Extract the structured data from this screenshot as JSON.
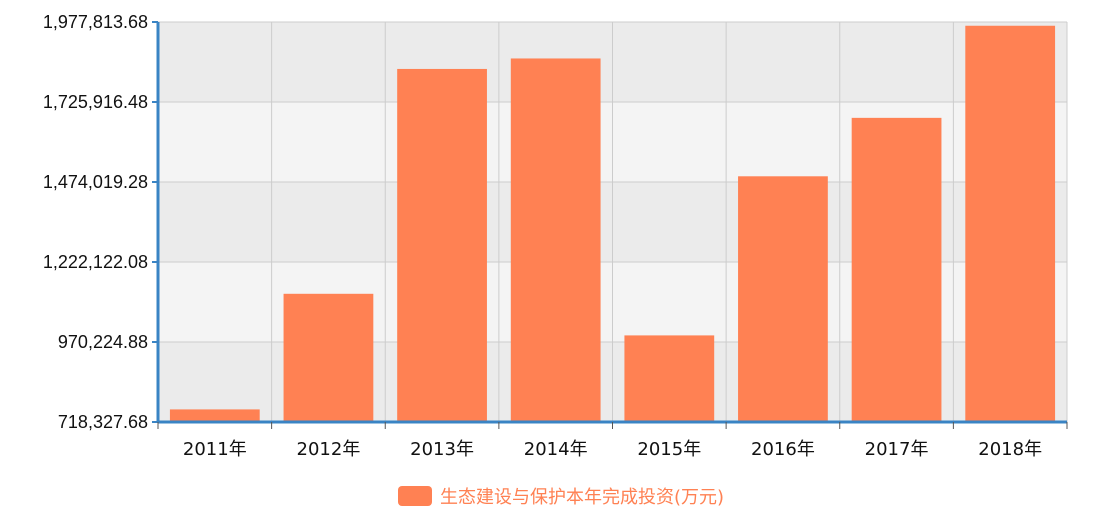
{
  "chart_data": {
    "type": "bar",
    "categories": [
      "2011年",
      "2012年",
      "2013年",
      "2014年",
      "2015年",
      "2016年",
      "2017年",
      "2018年"
    ],
    "series": [
      {
        "name": "生态建设与保护本年完成投资(万元)",
        "values": [
          758000,
          1122000,
          1830000,
          1863000,
          991000,
          1492000,
          1676000,
          1966000
        ],
        "color": "#ff8153"
      }
    ],
    "ylim": [
      718327.68,
      1977813.68
    ],
    "yticks": [
      "718,327.68",
      "970,224.88",
      "1,222,122.08",
      "1,474,019.28",
      "1,725,916.48",
      "1,977,813.68"
    ],
    "grid": true,
    "legend_position": "bottom-center",
    "colors": {
      "band_light": "#f4f4f4",
      "band_dark": "#ebebeb",
      "grid": "#cccccc",
      "axis": "#3a84c4",
      "bar": "#ff8153"
    }
  }
}
